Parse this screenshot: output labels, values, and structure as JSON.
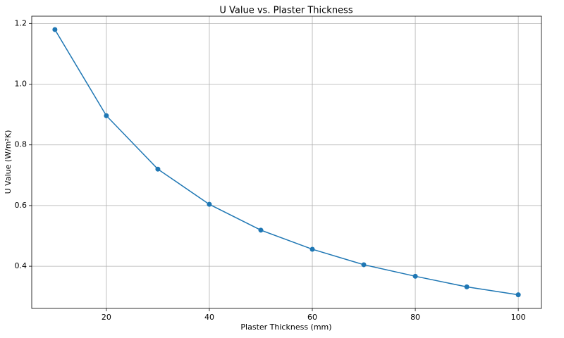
{
  "chart_data": {
    "type": "line",
    "title": "U Value vs. Plaster Thickness",
    "x_label": "Plaster Thickness (mm)",
    "y_label": "U Value (W/m²K)",
    "x": [
      10,
      20,
      30,
      40,
      50,
      60,
      70,
      80,
      90,
      100
    ],
    "series": [
      {
        "name": "U Value",
        "color": "#1f77b4",
        "values": [
          1.18,
          0.896,
          0.72,
          0.604,
          0.519,
          0.456,
          0.405,
          0.367,
          0.332,
          0.306
        ]
      }
    ],
    "xlim": [
      5.5,
      104.5
    ],
    "ylim": [
      0.261,
      1.224
    ],
    "xticks": [
      20,
      40,
      60,
      80,
      100
    ],
    "yticks": [
      0.4,
      0.6,
      0.8,
      {
        "value": 1,
        "label": "1.0"
      },
      1.2
    ],
    "grid": true,
    "markers": true
  }
}
